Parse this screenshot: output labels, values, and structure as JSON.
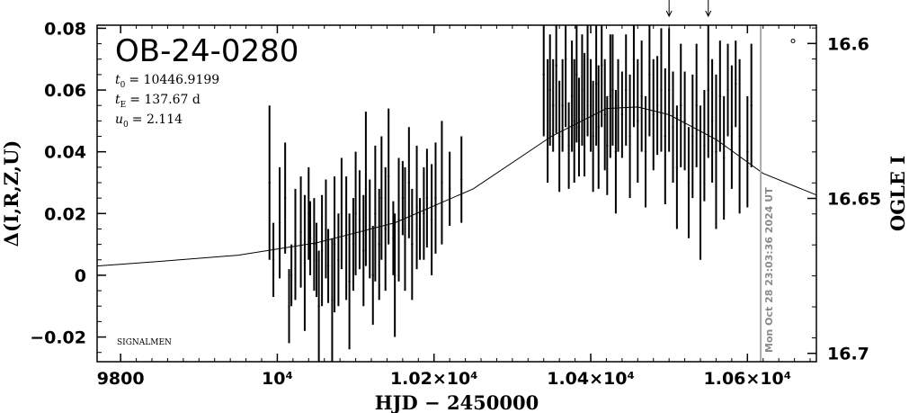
{
  "chart_data": {
    "type": "scatter",
    "title": "OB-24-0280",
    "xlabel": "HJD − 2450000",
    "ylabel_left": "Δ(I,R,Z,U)",
    "ylabel_right": "OGLE I",
    "xlim": [
      9770,
      10688
    ],
    "ylim_left": [
      -0.028,
      0.081
    ],
    "ylim_right_mag": [
      16.7027,
      16.5941
    ],
    "x_ticks": [
      {
        "value": 9800,
        "label": "9800"
      },
      {
        "value": 10000,
        "label": "10⁴"
      },
      {
        "value": 10200,
        "label": "1.02×10⁴"
      },
      {
        "value": 10400,
        "label": "1.04×10⁴"
      },
      {
        "value": 10600,
        "label": "1.06×10⁴"
      }
    ],
    "y_ticks_left": [
      {
        "value": -0.02,
        "label": "−0.02"
      },
      {
        "value": 0,
        "label": "0"
      },
      {
        "value": 0.02,
        "label": "0.02"
      },
      {
        "value": 0.04,
        "label": "0.04"
      },
      {
        "value": 0.06,
        "label": "0.06"
      },
      {
        "value": 0.08,
        "label": "0.08"
      }
    ],
    "y_ticks_right": [
      {
        "value": 16.6,
        "label": "16.6"
      },
      {
        "value": 16.65,
        "label": "16.65"
      },
      {
        "value": 16.7,
        "label": "16.7"
      }
    ],
    "parameters": {
      "t0_label": "t",
      "t0_sub": "0",
      "t0_value": "= 10446.9199",
      "tE_label": "t",
      "tE_sub": "E",
      "tE_value": "= 137.67 d",
      "u0_label": "u",
      "u0_sub": "0",
      "u0_value": "= 2.114"
    },
    "model": {
      "description_values": [
        [
          9770,
          0.003
        ],
        [
          9850,
          0.0045
        ],
        [
          9950,
          0.0065
        ],
        [
          10050,
          0.0105
        ],
        [
          10150,
          0.017
        ],
        [
          10250,
          0.028
        ],
        [
          10350,
          0.045
        ],
        [
          10420,
          0.054
        ],
        [
          10460,
          0.0545
        ],
        [
          10500,
          0.052
        ],
        [
          10560,
          0.044
        ],
        [
          10620,
          0.033
        ],
        [
          10688,
          0.026
        ]
      ]
    },
    "arrow_markers_x": [
      10500,
      10550
    ],
    "current_time_x": 10617,
    "current_time_label": "Mon Oct 28 23:03:36 2024 UT",
    "corner_label": "SIGNALMEN",
    "legend_symbol": "°",
    "series": [
      {
        "points": [
          [
            9990,
            0.03,
            0.025
          ],
          [
            9995,
            0.005,
            0.012
          ],
          [
            10003,
            0.017,
            0.018
          ],
          [
            10010,
            0.025,
            0.018
          ],
          [
            10015,
            -0.01,
            0.012
          ],
          [
            10018,
            0.0,
            0.01
          ],
          [
            10023,
            0.01,
            0.018
          ],
          [
            10030,
            0.014,
            0.018
          ],
          [
            10035,
            0.004,
            0.022
          ],
          [
            10040,
            0.02,
            0.015
          ],
          [
            10042,
            0.012,
            0.012
          ],
          [
            10047,
            0.01,
            0.015
          ],
          [
            10050,
            0.005,
            0.012
          ],
          [
            10053,
            -0.01,
            0.018
          ],
          [
            10057,
            0.008,
            0.018
          ],
          [
            10062,
            0.015,
            0.016
          ],
          [
            10065,
            0.003,
            0.012
          ],
          [
            10070,
            -0.008,
            0.02
          ],
          [
            10073,
            0.01,
            0.022
          ],
          [
            10078,
            0.005,
            0.015
          ],
          [
            10082,
            0.02,
            0.018
          ],
          [
            10088,
            0.012,
            0.02
          ],
          [
            10092,
            -0.002,
            0.022
          ],
          [
            10097,
            0.01,
            0.015
          ],
          [
            10100,
            0.02,
            0.02
          ],
          [
            10105,
            0.018,
            0.016
          ],
          [
            10110,
            0.008,
            0.018
          ],
          [
            10113,
            0.028,
            0.025
          ],
          [
            10118,
            0.015,
            0.016
          ],
          [
            10122,
            0.0,
            0.016
          ],
          [
            10125,
            0.02,
            0.022
          ],
          [
            10130,
            0.01,
            0.018
          ],
          [
            10133,
            0.025,
            0.02
          ],
          [
            10138,
            0.015,
            0.02
          ],
          [
            10142,
            0.032,
            0.022
          ],
          [
            10148,
            0.012,
            0.012
          ],
          [
            10150,
            0.0,
            0.02
          ],
          [
            10155,
            0.018,
            0.02
          ],
          [
            10160,
            0.025,
            0.012
          ],
          [
            10163,
            0.015,
            0.02
          ],
          [
            10168,
            0.03,
            0.018
          ],
          [
            10172,
            0.01,
            0.018
          ],
          [
            10178,
            0.022,
            0.02
          ],
          [
            10182,
            0.015,
            0.01
          ],
          [
            10187,
            0.02,
            0.015
          ],
          [
            10191,
            0.025,
            0.016
          ],
          [
            10197,
            0.018,
            0.018
          ],
          [
            10202,
            0.025,
            0.018
          ],
          [
            10210,
            0.03,
            0.02
          ],
          [
            10220,
            0.028,
            0.012
          ],
          [
            10235,
            0.031,
            0.014
          ],
          [
            10340,
            0.065,
            0.02
          ],
          [
            10345,
            0.05,
            0.02
          ],
          [
            10348,
            0.06,
            0.018
          ],
          [
            10352,
            0.055,
            0.015
          ],
          [
            10356,
            0.068,
            0.022
          ],
          [
            10360,
            0.045,
            0.018
          ],
          [
            10364,
            0.055,
            0.015
          ],
          [
            10368,
            0.07,
            0.022
          ],
          [
            10372,
            0.042,
            0.014
          ],
          [
            10376,
            0.058,
            0.018
          ],
          [
            10379,
            0.05,
            0.02
          ],
          [
            10382,
            0.065,
            0.022
          ],
          [
            10385,
            0.048,
            0.016
          ],
          [
            10389,
            0.06,
            0.018
          ],
          [
            10392,
            0.052,
            0.02
          ],
          [
            10396,
            0.07,
            0.025
          ],
          [
            10400,
            0.055,
            0.015
          ],
          [
            10403,
            0.045,
            0.018
          ],
          [
            10407,
            0.062,
            0.02
          ],
          [
            10410,
            0.048,
            0.02
          ],
          [
            10414,
            0.068,
            0.02
          ],
          [
            10418,
            0.052,
            0.018
          ],
          [
            10421,
            0.042,
            0.016
          ],
          [
            10425,
            0.058,
            0.02
          ],
          [
            10428,
            0.06,
            0.018
          ],
          [
            10432,
            0.04,
            0.02
          ],
          [
            10435,
            0.055,
            0.015
          ],
          [
            10440,
            0.052,
            0.014
          ],
          [
            10445,
            0.06,
            0.018
          ],
          [
            10450,
            0.045,
            0.02
          ],
          [
            10455,
            0.07,
            0.022
          ],
          [
            10460,
            0.05,
            0.02
          ],
          [
            10465,
            0.058,
            0.018
          ],
          [
            10470,
            0.04,
            0.018
          ],
          [
            10475,
            0.065,
            0.02
          ],
          [
            10480,
            0.052,
            0.018
          ],
          [
            10485,
            0.055,
            0.016
          ],
          [
            10490,
            0.06,
            0.02
          ],
          [
            10495,
            0.045,
            0.022
          ],
          [
            10500,
            0.06,
            0.02
          ],
          [
            10505,
            0.048,
            0.018
          ],
          [
            10510,
            0.035,
            0.02
          ],
          [
            10515,
            0.055,
            0.02
          ],
          [
            10520,
            0.05,
            0.016
          ],
          [
            10525,
            0.03,
            0.018
          ],
          [
            10530,
            0.045,
            0.02
          ],
          [
            10535,
            0.055,
            0.02
          ],
          [
            10540,
            0.03,
            0.025
          ],
          [
            10545,
            0.042,
            0.018
          ],
          [
            10550,
            0.06,
            0.022
          ],
          [
            10555,
            0.05,
            0.02
          ],
          [
            10560,
            0.04,
            0.025
          ],
          [
            10565,
            0.058,
            0.018
          ],
          [
            10570,
            0.038,
            0.02
          ],
          [
            10575,
            0.06,
            0.015
          ],
          [
            10580,
            0.048,
            0.02
          ],
          [
            10585,
            0.062,
            0.014
          ],
          [
            10590,
            0.045,
            0.025
          ],
          [
            10600,
            0.04,
            0.018
          ],
          [
            10605,
            0.055,
            0.02
          ]
        ]
      }
    ]
  }
}
